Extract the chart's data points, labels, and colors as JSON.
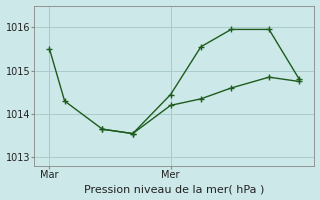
{
  "xlabel": "Pression niveau de la mer( hPa )",
  "background_color": "#cce8e8",
  "grid_color": "#aacccc",
  "line_color": "#1e5c1e",
  "ylim": [
    1012.8,
    1016.5
  ],
  "yticks": [
    1013,
    1014,
    1015,
    1016
  ],
  "x_day_labels": [
    "Mar",
    "Mer"
  ],
  "x_mar": 10,
  "x_mer": 90,
  "line1_x": [
    10,
    20,
    45,
    65,
    90,
    110,
    130,
    155,
    175
  ],
  "line1_y": [
    1015.5,
    1014.3,
    1013.65,
    1013.55,
    1014.45,
    1015.55,
    1015.95,
    1015.95,
    1014.8
  ],
  "line2_x": [
    45,
    65,
    90,
    110,
    130,
    155,
    175
  ],
  "line2_y": [
    1013.65,
    1013.55,
    1014.2,
    1014.35,
    1014.6,
    1014.85,
    1014.75
  ],
  "xlim": [
    0,
    185
  ],
  "marker_size": 5,
  "line_width": 1.0,
  "xlabel_fontsize": 8,
  "tick_fontsize": 7
}
